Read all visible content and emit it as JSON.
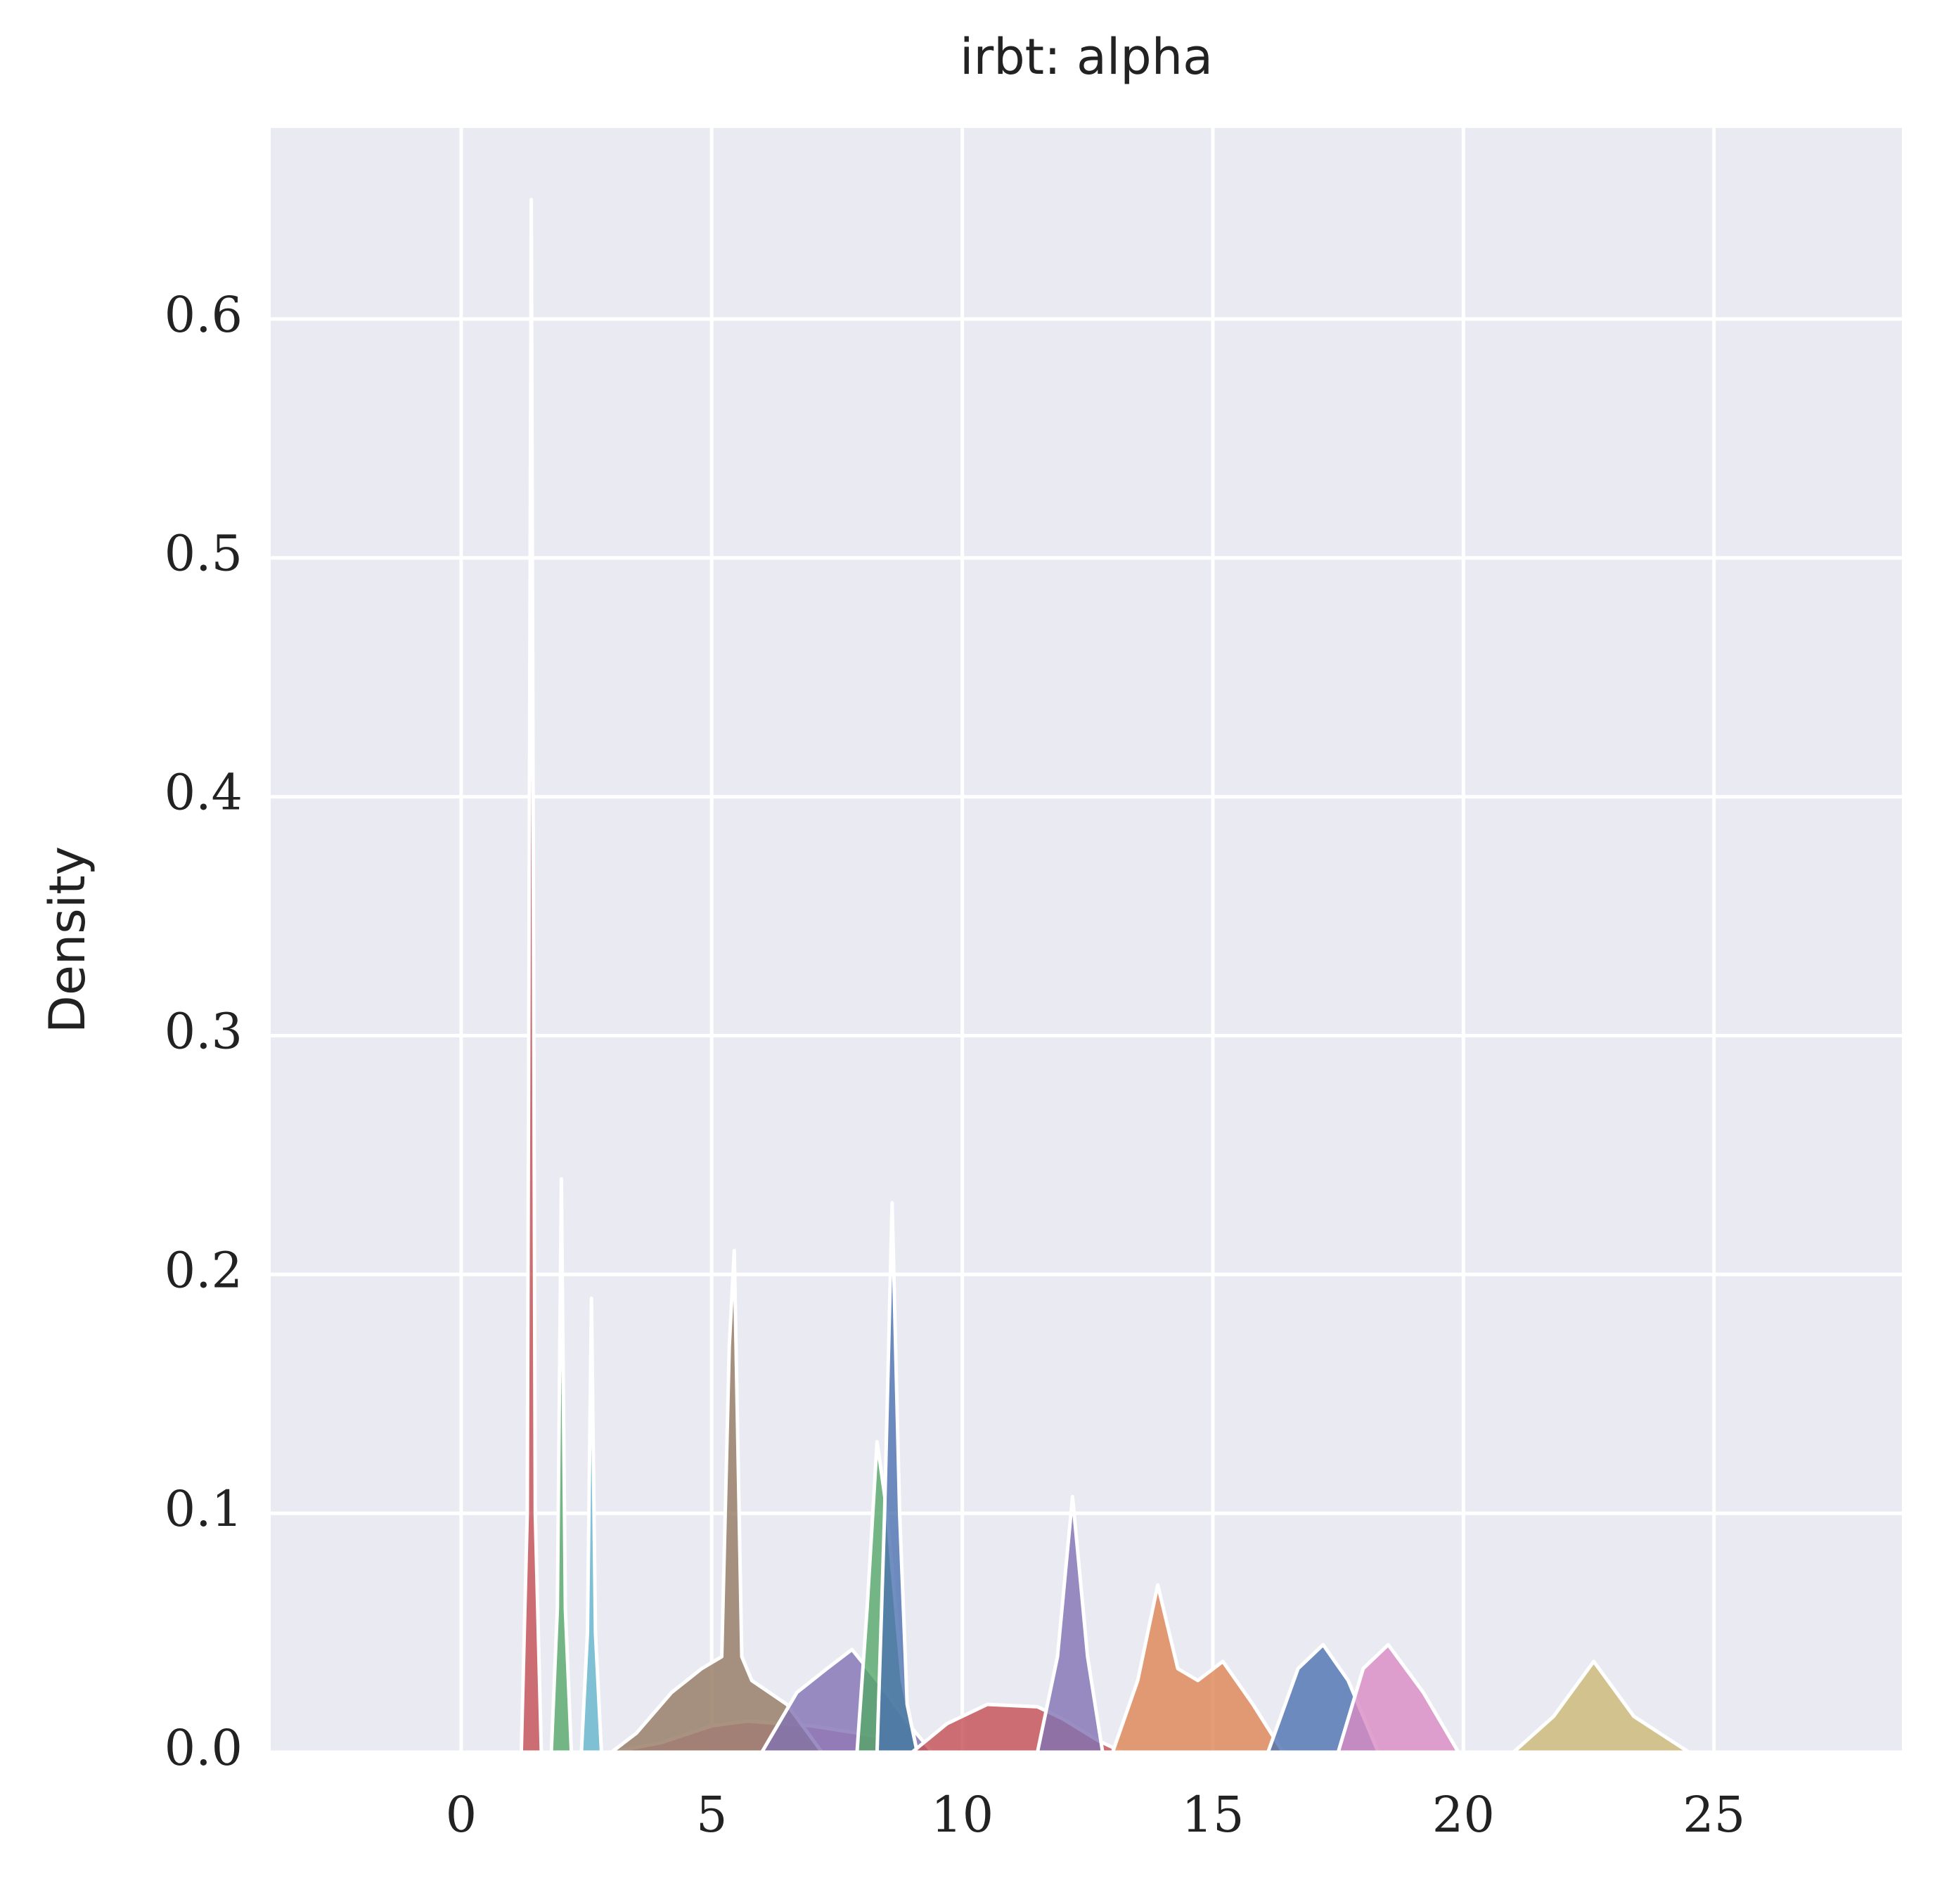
{
  "chart_data": {
    "type": "kde",
    "title": "irbt: alpha",
    "ylabel": "Density",
    "xlim": [
      -3.8,
      28.75
    ],
    "ylim": [
      0,
      0.68
    ],
    "xticks": [
      0,
      5,
      10,
      15,
      20,
      25
    ],
    "yticks": [
      {
        "value": 0,
        "label": "0.0"
      },
      0.1,
      0.2,
      0.3,
      0.4,
      0.5,
      0.6
    ],
    "grid": true,
    "series": [
      {
        "color": "#da8bc3",
        "x": [
          3,
          4,
          5,
          5.7,
          7,
          8.5,
          9.2
        ],
        "values": [
          0,
          0.004,
          0.011,
          0.013,
          0.011,
          0.006,
          0
        ]
      },
      {
        "color": "#937860",
        "x": [
          3,
          3.5,
          4.2,
          4.8,
          5.2,
          5.35,
          5.45,
          5.6,
          5.8,
          6.5,
          7.2
        ],
        "values": [
          0,
          0.008,
          0.025,
          0.035,
          0.04,
          0.17,
          0.21,
          0.04,
          0.03,
          0.02,
          0
        ]
      },
      {
        "color": "#8172b3",
        "x": [
          6,
          6.7,
          7.3,
          7.8,
          8.3,
          9,
          9.4
        ],
        "values": [
          0,
          0.025,
          0.035,
          0.043,
          0.03,
          0.01,
          0
        ]
      },
      {
        "color": "#55a868",
        "x": [
          7.9,
          8.1,
          8.3,
          8.5,
          8.8,
          9.1
        ],
        "values": [
          0,
          0.06,
          0.13,
          0.1,
          0.03,
          0
        ]
      },
      {
        "color": "#4c72b0",
        "x": [
          8.3,
          8.45,
          8.6,
          8.75,
          8.9,
          9.1
        ],
        "values": [
          0,
          0.1,
          0.23,
          0.1,
          0.02,
          0
        ]
      },
      {
        "color": "#c44e52",
        "x": [
          9,
          9.7,
          10.5,
          11.5,
          12,
          12.7,
          13.2
        ],
        "values": [
          0,
          0.012,
          0.02,
          0.019,
          0.014,
          0.005,
          0
        ]
      },
      {
        "color": "#8172b3",
        "x": [
          11.5,
          11.9,
          12.2,
          12.5,
          12.8
        ],
        "values": [
          0,
          0.04,
          0.107,
          0.04,
          0
        ]
      },
      {
        "color": "#dd8452",
        "x": [
          13,
          13.5,
          13.9,
          14.3,
          14.7,
          15.2,
          15.8,
          16.4
        ],
        "values": [
          0,
          0.03,
          0.07,
          0.035,
          0.03,
          0.038,
          0.02,
          0
        ]
      },
      {
        "color": "#4c72b0",
        "x": [
          16.1,
          16.7,
          17.2,
          17.7,
          18.3
        ],
        "values": [
          0,
          0.035,
          0.045,
          0.03,
          0
        ]
      },
      {
        "color": "#da8bc3",
        "x": [
          17.5,
          18,
          18.5,
          19.2,
          19.9
        ],
        "values": [
          0,
          0.035,
          0.045,
          0.025,
          0
        ]
      },
      {
        "color": "#ccb974",
        "x": [
          21,
          21.8,
          22.6,
          23.4,
          24.5
        ],
        "values": [
          0,
          0.015,
          0.038,
          0.015,
          0
        ]
      },
      {
        "color": "#c44e52",
        "x": [
          1.2,
          1.32,
          1.4,
          1.48,
          1.6
        ],
        "values": [
          0,
          0.1,
          0.65,
          0.1,
          0
        ]
      },
      {
        "color": "#55a868",
        "x": [
          1.8,
          1.92,
          2,
          2.08,
          2.2
        ],
        "values": [
          0,
          0.06,
          0.24,
          0.06,
          0
        ]
      },
      {
        "color": "#64b5cd",
        "x": [
          2.4,
          2.52,
          2.6,
          2.68,
          2.8
        ],
        "values": [
          0,
          0.05,
          0.19,
          0.05,
          0
        ]
      }
    ]
  }
}
